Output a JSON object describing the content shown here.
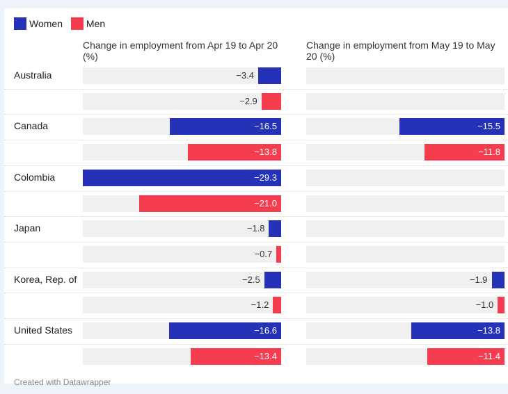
{
  "legend": [
    {
      "label": "Women",
      "color": "#2531b7"
    },
    {
      "label": "Men",
      "color": "#f53d4f"
    }
  ],
  "footer": "Created with Datawrapper",
  "chart_data": {
    "type": "bar",
    "orientation": "horizontal",
    "series": [
      {
        "name": "Women",
        "color": "#2531b7"
      },
      {
        "name": "Men",
        "color": "#f53d4f"
      }
    ],
    "panels": [
      {
        "title": "Change in employment from Apr 19 to Apr 20 (%)",
        "min": -29.3,
        "rows": [
          {
            "country": "Australia",
            "values": [
              -3.4,
              -2.9
            ]
          },
          {
            "country": "Canada",
            "values": [
              -16.5,
              -13.8
            ]
          },
          {
            "country": "Colombia",
            "values": [
              -29.3,
              -21.0
            ]
          },
          {
            "country": "Japan",
            "values": [
              -1.8,
              -0.7
            ]
          },
          {
            "country": "Korea, Rep. of",
            "values": [
              -2.5,
              -1.2
            ]
          },
          {
            "country": "United States",
            "values": [
              -16.6,
              -13.4
            ]
          }
        ]
      },
      {
        "title": "Change in employment from May 19 to May 20 (%)",
        "min": -29.3,
        "rows": [
          {
            "country": "Australia",
            "values": [
              null,
              null
            ]
          },
          {
            "country": "Canada",
            "values": [
              -15.5,
              -11.8
            ]
          },
          {
            "country": "Colombia",
            "values": [
              null,
              null
            ]
          },
          {
            "country": "Japan",
            "values": [
              null,
              null
            ]
          },
          {
            "country": "Korea, Rep. of",
            "values": [
              -1.9,
              -1.0
            ]
          },
          {
            "country": "United States",
            "values": [
              -13.8,
              -11.4
            ]
          }
        ]
      }
    ]
  }
}
